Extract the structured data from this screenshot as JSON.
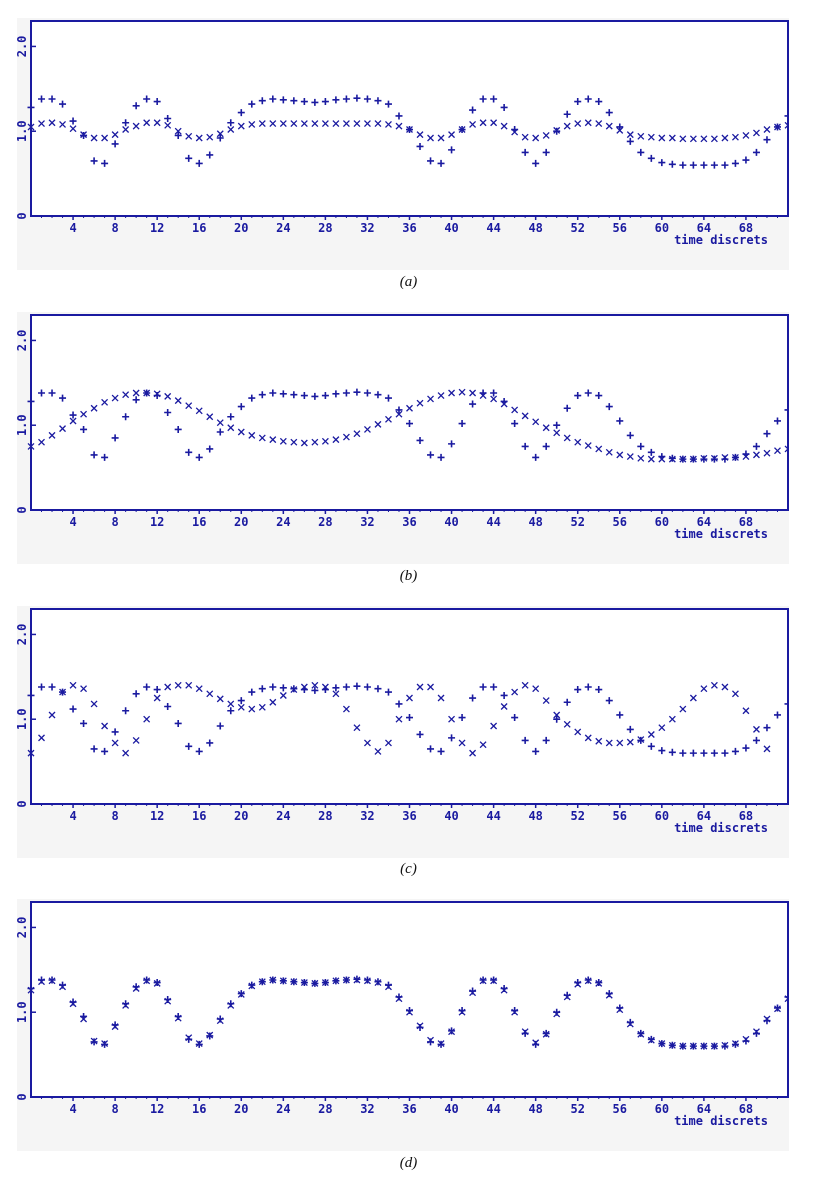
{
  "colors": {
    "axis": "#1a1aa0",
    "marks": "#1a1aa0",
    "panel_bg": "#f5f5f5"
  },
  "chart_data": [
    {
      "type": "scatter",
      "caption": "(a)",
      "xlabel": "time discrets",
      "xticks": [
        4,
        8,
        12,
        16,
        20,
        24,
        28,
        32,
        36,
        40,
        44,
        48,
        52,
        56,
        60,
        64,
        68
      ],
      "yticks": [
        "0",
        "1.0",
        "2.0"
      ],
      "xlim": [
        0,
        72
      ],
      "ylim": [
        0,
        2.3
      ],
      "grid": false,
      "series": [
        {
          "marker": "plus",
          "values": [
            1.28,
            1.38,
            1.38,
            1.32,
            1.12,
            0.95,
            0.65,
            0.62,
            0.85,
            1.1,
            1.3,
            1.38,
            1.35,
            1.15,
            0.95,
            0.68,
            0.62,
            0.72,
            0.92,
            1.1,
            1.22,
            1.32,
            1.36,
            1.38,
            1.37,
            1.36,
            1.35,
            1.34,
            1.35,
            1.37,
            1.38,
            1.39,
            1.38,
            1.36,
            1.32,
            1.18,
            1.02,
            0.82,
            0.65,
            0.62,
            0.78,
            1.02,
            1.25,
            1.38,
            1.38,
            1.28,
            1.02,
            0.75,
            0.62,
            0.75,
            1.0,
            1.2,
            1.35,
            1.38,
            1.35,
            1.22,
            1.05,
            0.88,
            0.75,
            0.68,
            0.63,
            0.61,
            0.6,
            0.6,
            0.6,
            0.6,
            0.6,
            0.62,
            0.66,
            0.75,
            0.9,
            1.05,
            1.18
          ]
        },
        {
          "marker": "cross",
          "values": [
            1.05,
            1.09,
            1.1,
            1.08,
            1.03,
            0.96,
            0.92,
            0.92,
            0.96,
            1.02,
            1.06,
            1.1,
            1.1,
            1.07,
            1.0,
            0.94,
            0.92,
            0.93,
            0.97,
            1.02,
            1.06,
            1.08,
            1.09,
            1.09,
            1.09,
            1.09,
            1.09,
            1.09,
            1.09,
            1.09,
            1.09,
            1.09,
            1.09,
            1.09,
            1.08,
            1.06,
            1.02,
            0.96,
            0.92,
            0.92,
            0.96,
            1.02,
            1.08,
            1.1,
            1.1,
            1.06,
            0.99,
            0.93,
            0.92,
            0.95,
            1.01,
            1.06,
            1.09,
            1.1,
            1.09,
            1.06,
            1.01,
            0.96,
            0.94,
            0.93,
            0.92,
            0.92,
            0.91,
            0.91,
            0.91,
            0.91,
            0.92,
            0.93,
            0.95,
            0.98,
            1.02,
            1.05,
            1.07
          ]
        }
      ]
    },
    {
      "type": "scatter",
      "caption": "(b)",
      "xlabel": "time discrets",
      "xticks": [
        4,
        8,
        12,
        16,
        20,
        24,
        28,
        32,
        36,
        40,
        44,
        48,
        52,
        56,
        60,
        64,
        68
      ],
      "yticks": [
        "0",
        "1.0",
        "2.0"
      ],
      "xlim": [
        0,
        72
      ],
      "ylim": [
        0,
        2.3
      ],
      "grid": false,
      "series": [
        {
          "marker": "plus",
          "values": [
            1.28,
            1.38,
            1.38,
            1.32,
            1.12,
            0.95,
            0.65,
            0.62,
            0.85,
            1.1,
            1.3,
            1.38,
            1.35,
            1.15,
            0.95,
            0.68,
            0.62,
            0.72,
            0.92,
            1.1,
            1.22,
            1.32,
            1.36,
            1.38,
            1.37,
            1.36,
            1.35,
            1.34,
            1.35,
            1.37,
            1.38,
            1.39,
            1.38,
            1.36,
            1.32,
            1.18,
            1.02,
            0.82,
            0.65,
            0.62,
            0.78,
            1.02,
            1.25,
            1.38,
            1.38,
            1.28,
            1.02,
            0.75,
            0.62,
            0.75,
            1.0,
            1.2,
            1.35,
            1.38,
            1.35,
            1.22,
            1.05,
            0.88,
            0.75,
            0.68,
            0.63,
            0.61,
            0.6,
            0.6,
            0.6,
            0.6,
            0.6,
            0.62,
            0.66,
            0.75,
            0.9,
            1.05,
            1.18
          ]
        },
        {
          "marker": "cross",
          "values": [
            0.75,
            0.8,
            0.88,
            0.96,
            1.05,
            1.13,
            1.2,
            1.27,
            1.32,
            1.36,
            1.38,
            1.38,
            1.37,
            1.34,
            1.29,
            1.23,
            1.17,
            1.1,
            1.03,
            0.97,
            0.92,
            0.88,
            0.85,
            0.83,
            0.81,
            0.8,
            0.79,
            0.8,
            0.81,
            0.83,
            0.86,
            0.9,
            0.95,
            1.01,
            1.07,
            1.13,
            1.2,
            1.26,
            1.31,
            1.35,
            1.38,
            1.39,
            1.38,
            1.35,
            1.31,
            1.25,
            1.18,
            1.11,
            1.04,
            0.97,
            0.91,
            0.85,
            0.8,
            0.76,
            0.72,
            0.68,
            0.65,
            0.63,
            0.61,
            0.6,
            0.6,
            0.6,
            0.6,
            0.6,
            0.61,
            0.61,
            0.62,
            0.62,
            0.63,
            0.65,
            0.67,
            0.7,
            0.72
          ]
        }
      ]
    },
    {
      "type": "scatter",
      "caption": "(c)",
      "xlabel": "time discrets",
      "xticks": [
        4,
        8,
        12,
        16,
        20,
        24,
        28,
        32,
        36,
        40,
        44,
        48,
        52,
        56,
        60,
        64,
        68
      ],
      "yticks": [
        "0",
        "1.0",
        "2.0"
      ],
      "xlim": [
        0,
        72
      ],
      "ylim": [
        0,
        2.3
      ],
      "grid": false,
      "series": [
        {
          "marker": "plus",
          "values": [
            1.28,
            1.38,
            1.38,
            1.32,
            1.12,
            0.95,
            0.65,
            0.62,
            0.85,
            1.1,
            1.3,
            1.38,
            1.35,
            1.15,
            0.95,
            0.68,
            0.62,
            0.72,
            0.92,
            1.1,
            1.22,
            1.32,
            1.36,
            1.38,
            1.37,
            1.36,
            1.35,
            1.34,
            1.35,
            1.37,
            1.38,
            1.39,
            1.38,
            1.36,
            1.32,
            1.18,
            1.02,
            0.82,
            0.65,
            0.62,
            0.78,
            1.02,
            1.25,
            1.38,
            1.38,
            1.28,
            1.02,
            0.75,
            0.62,
            0.75,
            1.0,
            1.2,
            1.35,
            1.38,
            1.35,
            1.22,
            1.05,
            0.88,
            0.75,
            0.68,
            0.63,
            0.61,
            0.6,
            0.6,
            0.6,
            0.6,
            0.6,
            0.62,
            0.66,
            0.75,
            0.9,
            1.05,
            1.18
          ]
        },
        {
          "marker": "cross",
          "values": [
            0.6,
            0.78,
            1.05,
            1.32,
            1.4,
            1.36,
            1.18,
            0.92,
            0.72,
            0.6,
            0.75,
            1.0,
            1.25,
            1.38,
            1.4,
            1.4,
            1.36,
            1.3,
            1.24,
            1.18,
            1.14,
            1.12,
            1.14,
            1.2,
            1.28,
            1.35,
            1.38,
            1.4,
            1.38,
            1.3,
            1.12,
            0.9,
            0.72,
            0.62,
            0.72,
            1.0,
            1.25,
            1.38,
            1.38,
            1.25,
            1.0,
            0.72,
            0.6,
            0.7,
            0.92,
            1.15,
            1.32,
            1.4,
            1.36,
            1.22,
            1.05,
            0.94,
            0.85,
            0.78,
            0.74,
            0.72,
            0.72,
            0.73,
            0.76,
            0.82,
            0.9,
            1.0,
            1.12,
            1.25,
            1.36,
            1.4,
            1.38,
            1.3,
            1.1,
            0.88,
            0.65
          ]
        }
      ]
    },
    {
      "type": "scatter",
      "caption": "(d)",
      "xlabel": "time discrets",
      "xticks": [
        4,
        8,
        12,
        16,
        20,
        24,
        28,
        32,
        36,
        40,
        44,
        48,
        52,
        56,
        60,
        64,
        68
      ],
      "yticks": [
        "0",
        "1.0",
        "2.0"
      ],
      "xlim": [
        0,
        72
      ],
      "ylim": [
        0,
        2.3
      ],
      "grid": false,
      "series": [
        {
          "marker": "plus",
          "values": [
            1.28,
            1.38,
            1.38,
            1.32,
            1.12,
            0.95,
            0.65,
            0.62,
            0.85,
            1.1,
            1.3,
            1.38,
            1.35,
            1.15,
            0.95,
            0.68,
            0.62,
            0.72,
            0.92,
            1.1,
            1.22,
            1.32,
            1.36,
            1.38,
            1.37,
            1.36,
            1.35,
            1.34,
            1.35,
            1.37,
            1.38,
            1.39,
            1.38,
            1.36,
            1.32,
            1.18,
            1.02,
            0.82,
            0.65,
            0.62,
            0.78,
            1.02,
            1.25,
            1.38,
            1.38,
            1.28,
            1.02,
            0.75,
            0.62,
            0.75,
            1.0,
            1.2,
            1.35,
            1.38,
            1.35,
            1.22,
            1.05,
            0.88,
            0.75,
            0.68,
            0.63,
            0.61,
            0.6,
            0.6,
            0.6,
            0.6,
            0.6,
            0.62,
            0.66,
            0.75,
            0.9,
            1.05,
            1.18
          ]
        },
        {
          "marker": "cross",
          "values": [
            1.26,
            1.36,
            1.37,
            1.3,
            1.1,
            0.92,
            0.66,
            0.63,
            0.83,
            1.08,
            1.28,
            1.37,
            1.34,
            1.13,
            0.93,
            0.7,
            0.63,
            0.73,
            0.9,
            1.08,
            1.21,
            1.31,
            1.36,
            1.38,
            1.37,
            1.36,
            1.35,
            1.34,
            1.35,
            1.37,
            1.38,
            1.38,
            1.37,
            1.35,
            1.3,
            1.16,
            1.0,
            0.84,
            0.67,
            0.63,
            0.77,
            1.0,
            1.23,
            1.37,
            1.37,
            1.26,
            1.0,
            0.77,
            0.64,
            0.74,
            0.98,
            1.18,
            1.33,
            1.37,
            1.34,
            1.2,
            1.03,
            0.86,
            0.74,
            0.67,
            0.63,
            0.61,
            0.6,
            0.6,
            0.6,
            0.6,
            0.61,
            0.63,
            0.68,
            0.77,
            0.92,
            1.04,
            1.16
          ]
        }
      ]
    }
  ]
}
